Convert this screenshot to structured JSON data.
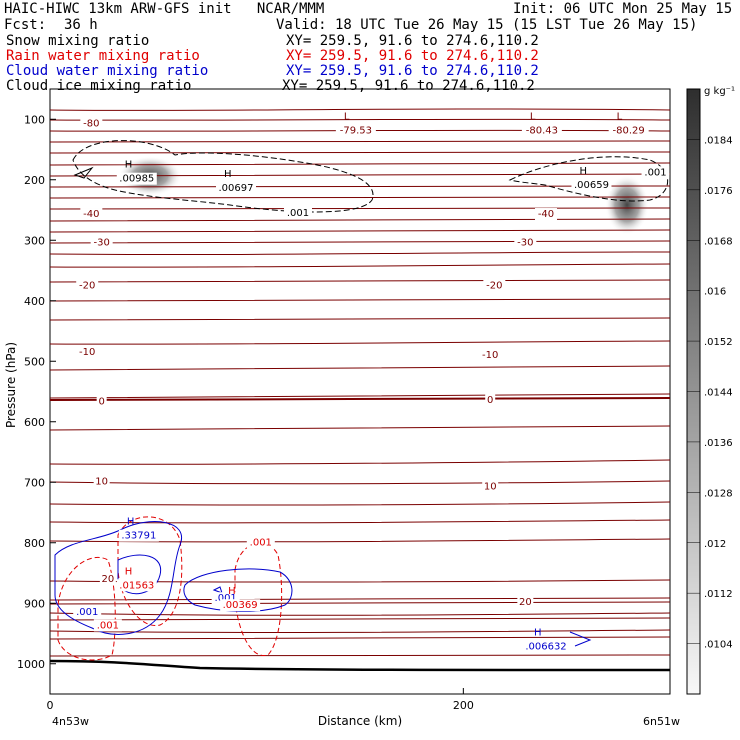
{
  "header": {
    "title": "HAIC-HIWC 13km ARW-GFS init   NCAR/MMM",
    "init": "Init: 06 UTC Mon 25 May 15",
    "fcst_label": "Fcst:",
    "fcst_value": "36 h",
    "valid": "Valid: 18 UTC Tue 26 May 15 (15 LST Tue 26 May 15)",
    "fields": [
      {
        "name": "Snow mixing ratio",
        "xy": "XY= 259.5, 91.6 to 274.6,110.2",
        "color": "#000000"
      },
      {
        "name": "Rain water mixing ratio",
        "xy": "XY= 259.5, 91.6 to 274.6,110.2",
        "color": "#e00000"
      },
      {
        "name": "Cloud water mixing ratio",
        "xy": "XY= 259.5, 91.6 to 274.6,110.2",
        "color": "#0000cc"
      },
      {
        "name": "Cloud ice mixing ratio",
        "xy": "XY= 259.5, 91.6 to 274.6,110.2",
        "color": "#000000"
      }
    ]
  },
  "chart_data": {
    "type": "contour cross-section",
    "xlabel": "Distance (km)",
    "ylabel": "Pressure (hPa)",
    "x_ticks": [
      0,
      200
    ],
    "y_ticks": [
      100,
      200,
      300,
      400,
      500,
      600,
      700,
      800,
      900,
      1000
    ],
    "x_start_label": "4n53w",
    "x_end_label": "6n51w",
    "xlim": [
      0,
      300
    ],
    "ylim": [
      1050,
      50
    ],
    "colorbar": {
      "unit": "g kg⁻¹",
      "ticks": [
        ".0184",
        ".0176",
        ".0168",
        ".016",
        ".0152",
        ".0144",
        ".0136",
        ".0128",
        ".012",
        ".0112",
        ".0104"
      ]
    },
    "temperature_labels": [
      {
        "text": "-80",
        "x": 20,
        "y": 105
      },
      {
        "text": "-40",
        "x": 20,
        "y": 255
      },
      {
        "text": "-40",
        "x": 240,
        "y": 255
      },
      {
        "text": "-30",
        "x": 25,
        "y": 302
      },
      {
        "text": "-30",
        "x": 230,
        "y": 302
      },
      {
        "text": "-20",
        "x": 18,
        "y": 373
      },
      {
        "text": "-20",
        "x": 215,
        "y": 373
      },
      {
        "text": "-10",
        "x": 18,
        "y": 483
      },
      {
        "text": "-10",
        "x": 213,
        "y": 488
      },
      {
        "text": "0",
        "x": 25,
        "y": 565
      },
      {
        "text": "0",
        "x": 213,
        "y": 562
      },
      {
        "text": "10",
        "x": 25,
        "y": 697
      },
      {
        "text": "10",
        "x": 213,
        "y": 705
      },
      {
        "text": "20",
        "x": 28,
        "y": 858
      },
      {
        "text": "20",
        "x": 230,
        "y": 896
      }
    ],
    "extrema_labels": [
      {
        "kind": "L",
        "value": "-79.53",
        "x": 148,
        "y": 110,
        "color": "#7a0000"
      },
      {
        "kind": "L",
        "value": "-80.43",
        "x": 238,
        "y": 110,
        "color": "#7a0000"
      },
      {
        "kind": "L",
        "value": "-80.29",
        "x": 280,
        "y": 110,
        "color": "#7a0000"
      },
      {
        "kind": "H",
        "value": ".00985",
        "x": 42,
        "y": 190,
        "color": "#000000"
      },
      {
        "kind": "H",
        "value": ".00697",
        "x": 90,
        "y": 205,
        "color": "#000000"
      },
      {
        "kind": "H",
        "value": ".00659",
        "x": 262,
        "y": 200,
        "color": "#000000"
      },
      {
        "kind": "H",
        "value": ".33791",
        "x": 43,
        "y": 780,
        "color": "#0000cc"
      },
      {
        "kind": "H",
        "value": ".01563",
        "x": 42,
        "y": 862,
        "color": "#e00000"
      },
      {
        "kind": "H",
        "value": ".00369",
        "x": 92,
        "y": 895,
        "color": "#e00000"
      },
      {
        "kind": "H",
        "value": ".006632",
        "x": 240,
        "y": 963,
        "color": "#0000cc"
      }
    ],
    "contour_labels": [
      {
        "text": ".001",
        "x": 120,
        "y": 253,
        "color": "#000000"
      },
      {
        "text": ".001",
        "x": 293,
        "y": 186,
        "color": "#000000"
      },
      {
        "text": ".001",
        "x": 102,
        "y": 798,
        "color": "#e00000"
      },
      {
        "text": ".001",
        "x": 28,
        "y": 935,
        "color": "#e00000"
      },
      {
        "text": ".001",
        "x": 18,
        "y": 913,
        "color": "#0000cc"
      },
      {
        "text": ".001",
        "x": 85,
        "y": 890,
        "color": "#0000cc"
      }
    ]
  }
}
